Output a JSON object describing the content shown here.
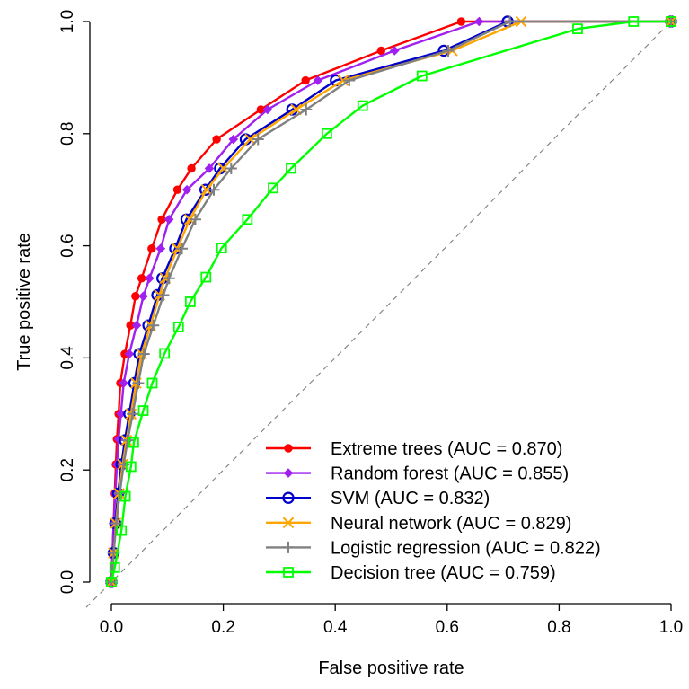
{
  "chart_data": {
    "type": "line",
    "title": "",
    "xlabel": "False positive rate",
    "ylabel": "True positive rate",
    "xlim": [
      0,
      1
    ],
    "ylim": [
      0,
      1
    ],
    "xticks": [
      "0.0",
      "0.2",
      "0.4",
      "0.6",
      "0.8",
      "1.0"
    ],
    "yticks": [
      "0.0",
      "0.2",
      "0.4",
      "0.6",
      "0.8",
      "1.0"
    ],
    "grid": false,
    "legend_position": "bottom-right",
    "reference_line": {
      "from": [
        0,
        0
      ],
      "to": [
        1,
        1
      ],
      "color": "#808080",
      "style": "dashed"
    },
    "series": [
      {
        "name": "Extreme trees (AUC = 0.870)",
        "color": "#ff0000",
        "marker": "filled-circle",
        "points": [
          [
            0,
            0
          ],
          [
            0.002,
            0.05
          ],
          [
            0.004,
            0.105
          ],
          [
            0.006,
            0.158
          ],
          [
            0.008,
            0.21
          ],
          [
            0.01,
            0.255
          ],
          [
            0.013,
            0.3
          ],
          [
            0.016,
            0.355
          ],
          [
            0.024,
            0.407
          ],
          [
            0.034,
            0.458
          ],
          [
            0.043,
            0.51
          ],
          [
            0.054,
            0.542
          ],
          [
            0.072,
            0.595
          ],
          [
            0.09,
            0.647
          ],
          [
            0.118,
            0.7
          ],
          [
            0.143,
            0.738
          ],
          [
            0.188,
            0.79
          ],
          [
            0.267,
            0.843
          ],
          [
            0.347,
            0.895
          ],
          [
            0.482,
            0.948
          ],
          [
            0.625,
            1.0
          ],
          [
            1.0,
            1.0
          ]
        ]
      },
      {
        "name": "Random forest (AUC = 0.855)",
        "color": "#a020f0",
        "marker": "filled-diamond",
        "points": [
          [
            0,
            0
          ],
          [
            0.002,
            0.05
          ],
          [
            0.004,
            0.105
          ],
          [
            0.007,
            0.158
          ],
          [
            0.01,
            0.21
          ],
          [
            0.013,
            0.255
          ],
          [
            0.017,
            0.3
          ],
          [
            0.022,
            0.355
          ],
          [
            0.032,
            0.407
          ],
          [
            0.045,
            0.458
          ],
          [
            0.057,
            0.51
          ],
          [
            0.068,
            0.542
          ],
          [
            0.088,
            0.595
          ],
          [
            0.103,
            0.647
          ],
          [
            0.135,
            0.7
          ],
          [
            0.175,
            0.738
          ],
          [
            0.218,
            0.79
          ],
          [
            0.279,
            0.843
          ],
          [
            0.369,
            0.895
          ],
          [
            0.506,
            0.948
          ],
          [
            0.657,
            1.0
          ],
          [
            1.0,
            1.0
          ]
        ]
      },
      {
        "name": "SVM (AUC = 0.832)",
        "color": "#0000cd",
        "marker": "open-circle",
        "points": [
          [
            0,
            0
          ],
          [
            0.004,
            0.052
          ],
          [
            0.007,
            0.105
          ],
          [
            0.012,
            0.158
          ],
          [
            0.018,
            0.21
          ],
          [
            0.024,
            0.253
          ],
          [
            0.032,
            0.3
          ],
          [
            0.041,
            0.355
          ],
          [
            0.05,
            0.407
          ],
          [
            0.066,
            0.458
          ],
          [
            0.082,
            0.512
          ],
          [
            0.091,
            0.542
          ],
          [
            0.114,
            0.595
          ],
          [
            0.134,
            0.647
          ],
          [
            0.168,
            0.7
          ],
          [
            0.194,
            0.738
          ],
          [
            0.24,
            0.79
          ],
          [
            0.323,
            0.843
          ],
          [
            0.401,
            0.895
          ],
          [
            0.594,
            0.948
          ],
          [
            0.708,
            1.0
          ],
          [
            1.0,
            1.0
          ]
        ]
      },
      {
        "name": "Neural network (AUC = 0.829)",
        "color": "#ffa500",
        "marker": "cross-x",
        "points": [
          [
            0,
            0
          ],
          [
            0.004,
            0.052
          ],
          [
            0.008,
            0.105
          ],
          [
            0.014,
            0.158
          ],
          [
            0.02,
            0.21
          ],
          [
            0.027,
            0.253
          ],
          [
            0.035,
            0.3
          ],
          [
            0.044,
            0.355
          ],
          [
            0.054,
            0.407
          ],
          [
            0.07,
            0.458
          ],
          [
            0.086,
            0.512
          ],
          [
            0.096,
            0.542
          ],
          [
            0.118,
            0.595
          ],
          [
            0.14,
            0.647
          ],
          [
            0.17,
            0.7
          ],
          [
            0.2,
            0.738
          ],
          [
            0.248,
            0.79
          ],
          [
            0.33,
            0.843
          ],
          [
            0.414,
            0.895
          ],
          [
            0.609,
            0.948
          ],
          [
            0.732,
            1.0
          ],
          [
            1.0,
            1.0
          ]
        ]
      },
      {
        "name": "Logistic regression (AUC = 0.822)",
        "color": "#808080",
        "marker": "plus",
        "points": [
          [
            0,
            0
          ],
          [
            0.004,
            0.052
          ],
          [
            0.009,
            0.105
          ],
          [
            0.015,
            0.158
          ],
          [
            0.022,
            0.21
          ],
          [
            0.029,
            0.253
          ],
          [
            0.038,
            0.3
          ],
          [
            0.048,
            0.355
          ],
          [
            0.058,
            0.407
          ],
          [
            0.075,
            0.458
          ],
          [
            0.093,
            0.512
          ],
          [
            0.103,
            0.542
          ],
          [
            0.126,
            0.595
          ],
          [
            0.15,
            0.647
          ],
          [
            0.183,
            0.7
          ],
          [
            0.214,
            0.738
          ],
          [
            0.262,
            0.79
          ],
          [
            0.348,
            0.843
          ],
          [
            0.425,
            0.895
          ],
          [
            0.602,
            0.948
          ],
          [
            0.712,
            1.0
          ],
          [
            1.0,
            1.0
          ]
        ]
      },
      {
        "name": "Decision tree (AUC = 0.759)",
        "color": "#00ff00",
        "marker": "open-square",
        "points": [
          [
            0,
            0
          ],
          [
            0.006,
            0.026
          ],
          [
            0.018,
            0.092
          ],
          [
            0.025,
            0.153
          ],
          [
            0.035,
            0.206
          ],
          [
            0.04,
            0.249
          ],
          [
            0.057,
            0.306
          ],
          [
            0.073,
            0.355
          ],
          [
            0.095,
            0.408
          ],
          [
            0.12,
            0.455
          ],
          [
            0.141,
            0.5
          ],
          [
            0.169,
            0.544
          ],
          [
            0.197,
            0.596
          ],
          [
            0.243,
            0.647
          ],
          [
            0.289,
            0.703
          ],
          [
            0.321,
            0.738
          ],
          [
            0.385,
            0.8
          ],
          [
            0.449,
            0.85
          ],
          [
            0.555,
            0.903
          ],
          [
            0.833,
            0.987
          ],
          [
            0.933,
            1.0
          ],
          [
            1.0,
            1.0
          ]
        ]
      }
    ]
  }
}
